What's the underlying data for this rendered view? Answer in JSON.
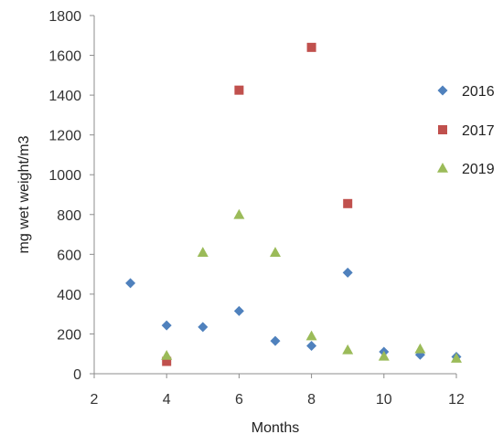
{
  "chart_data": {
    "type": "scatter",
    "xlabel": "Months",
    "ylabel": "mg wet weight/m3",
    "xlim": [
      2,
      12
    ],
    "ylim": [
      0,
      1800
    ],
    "x_ticks": [
      2,
      4,
      6,
      8,
      10,
      12
    ],
    "y_ticks": [
      0,
      200,
      400,
      600,
      800,
      1000,
      1200,
      1400,
      1600,
      1800
    ],
    "grid": false,
    "legend_position": "right",
    "series": [
      {
        "name": "2016",
        "marker": "diamond",
        "color": "#4f81bd",
        "points": [
          [
            3,
            455
          ],
          [
            4,
            243
          ],
          [
            5,
            235
          ],
          [
            6,
            315
          ],
          [
            7,
            165
          ],
          [
            8,
            140
          ],
          [
            9,
            508
          ],
          [
            10,
            110
          ],
          [
            11,
            95
          ],
          [
            12,
            85
          ]
        ]
      },
      {
        "name": "2017",
        "marker": "square",
        "color": "#c0504d",
        "points": [
          [
            4,
            62
          ],
          [
            6,
            1425
          ],
          [
            8,
            1640
          ],
          [
            9,
            855
          ]
        ]
      },
      {
        "name": "2019",
        "marker": "triangle",
        "color": "#9bbb59",
        "points": [
          [
            4,
            92
          ],
          [
            5,
            610
          ],
          [
            6,
            800
          ],
          [
            7,
            610
          ],
          [
            8,
            190
          ],
          [
            9,
            120
          ],
          [
            10,
            88
          ],
          [
            11,
            125
          ],
          [
            12,
            78
          ]
        ]
      }
    ]
  }
}
